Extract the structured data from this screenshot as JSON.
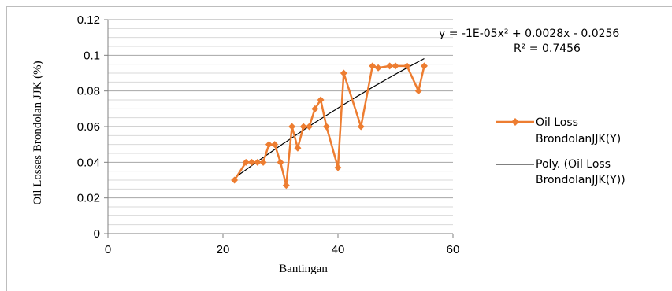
{
  "chart_data": {
    "type": "line",
    "xlabel": "Bantingan",
    "ylabel": "Oil Losses Brondolan JJK (%)",
    "xlim": [
      0,
      60
    ],
    "ylim": [
      0,
      0.12
    ],
    "x_ticks": [
      "0",
      "20",
      "40",
      "60"
    ],
    "y_ticks": [
      "0",
      "0.02",
      "0.04",
      "0.06",
      "0.08",
      "0.1",
      "0.12"
    ],
    "grid": "horizontal major and minor gridlines",
    "legend_placement": "right",
    "series": [
      {
        "name": "Oil Loss BrondolanJJK(Y)",
        "legend_lines": [
          "Oil Loss",
          "BrondolanJJK(Y)"
        ],
        "color": "#ED7D31",
        "marker": "diamond",
        "points": [
          [
            22,
            0.03
          ],
          [
            24,
            0.04
          ],
          [
            25,
            0.04
          ],
          [
            26,
            0.04
          ],
          [
            27,
            0.04
          ],
          [
            28,
            0.05
          ],
          [
            29,
            0.05
          ],
          [
            30,
            0.04
          ],
          [
            31,
            0.027
          ],
          [
            32,
            0.06
          ],
          [
            33,
            0.048
          ],
          [
            34,
            0.06
          ],
          [
            35,
            0.06
          ],
          [
            36,
            0.07
          ],
          [
            37,
            0.075
          ],
          [
            38,
            0.06
          ],
          [
            40,
            0.037
          ],
          [
            41,
            0.09
          ],
          [
            44,
            0.06
          ],
          [
            46,
            0.094
          ],
          [
            47,
            0.093
          ],
          [
            49,
            0.094
          ],
          [
            50,
            0.094
          ],
          [
            52,
            0.094
          ],
          [
            54,
            0.08
          ],
          [
            55,
            0.094
          ]
        ]
      },
      {
        "name": "Poly. (Oil Loss BrondolanJJK(Y))",
        "legend_lines": [
          "Poly. (Oil Loss",
          "BrondolanJJK(Y))"
        ],
        "color": "#000000",
        "type": "trendline",
        "coefficients": {
          "a": -1e-05,
          "b": 0.0028,
          "c": -0.0256
        },
        "x_range": [
          22,
          55
        ]
      }
    ],
    "annotations": {
      "equation": "y = -1E-05x² + 0.0028x - 0.0256",
      "r_squared": "R² = 0.7456"
    }
  }
}
